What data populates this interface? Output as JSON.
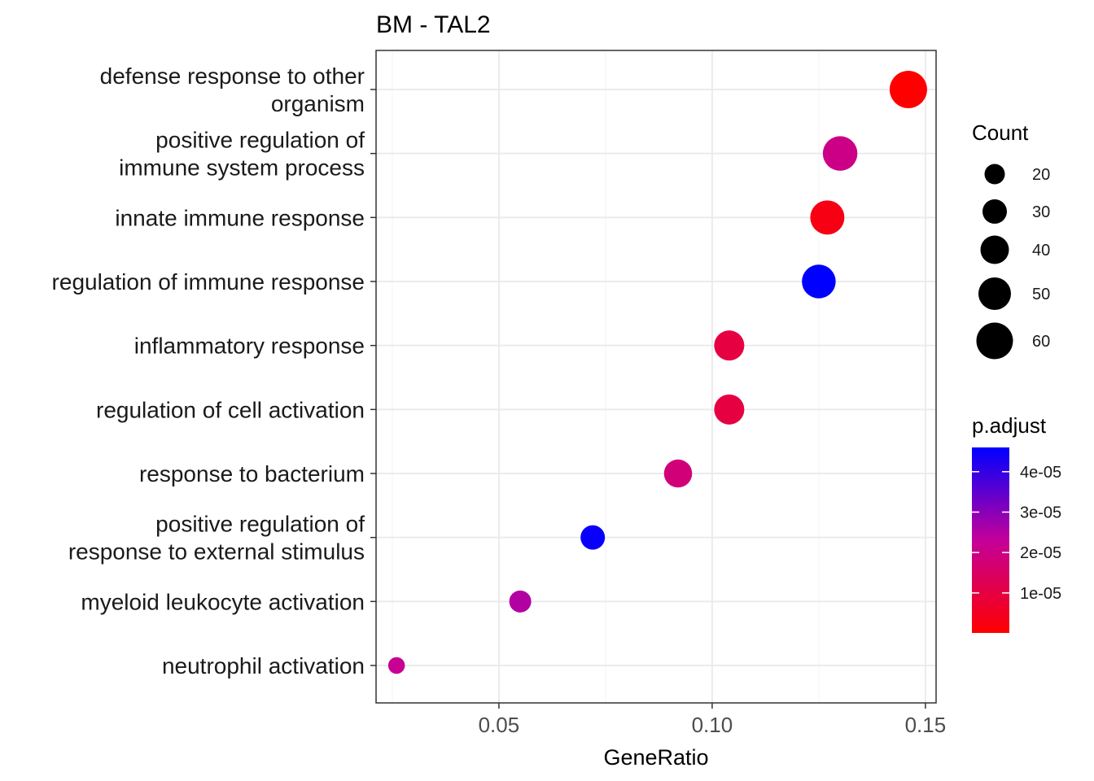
{
  "chart_data": {
    "type": "scatter",
    "title": "BM - TAL2",
    "xlabel": "GeneRatio",
    "ylabel": "",
    "xlim": [
      0.0212,
      0.1525
    ],
    "x_ticks": [
      0.05,
      0.1,
      0.15
    ],
    "x_tick_labels": [
      "0.05",
      "0.10",
      "0.15"
    ],
    "grid": true,
    "legend_position": "right",
    "categories": [
      {
        "label": [
          "defense response to other",
          "organism"
        ],
        "gene_ratio": 0.146,
        "count": 62,
        "p_adjust": 1e-07
      },
      {
        "label": [
          "positive regulation of",
          "immune system process"
        ],
        "gene_ratio": 0.13,
        "count": 55,
        "p_adjust": 2e-05
      },
      {
        "label": [
          "innate immune response"
        ],
        "gene_ratio": 0.127,
        "count": 54,
        "p_adjust": 3e-06
      },
      {
        "label": [
          "regulation of immune response"
        ],
        "gene_ratio": 0.125,
        "count": 53,
        "p_adjust": 4.6e-05
      },
      {
        "label": [
          "inflammatory response"
        ],
        "gene_ratio": 0.104,
        "count": 44,
        "p_adjust": 1e-05
      },
      {
        "label": [
          "regulation of cell activation"
        ],
        "gene_ratio": 0.104,
        "count": 44,
        "p_adjust": 1e-05
      },
      {
        "label": [
          "response to bacterium"
        ],
        "gene_ratio": 0.092,
        "count": 39,
        "p_adjust": 1.8e-05
      },
      {
        "label": [
          "positive regulation of",
          "response to external stimulus"
        ],
        "gene_ratio": 0.072,
        "count": 30,
        "p_adjust": 4.5e-05
      },
      {
        "label": [
          "myeloid leukocyte activation"
        ],
        "gene_ratio": 0.055,
        "count": 24,
        "p_adjust": 2.5e-05
      },
      {
        "label": [
          "neutrophil activation"
        ],
        "gene_ratio": 0.026,
        "count": 11,
        "p_adjust": 2.2e-05
      }
    ],
    "size_legend": {
      "title": "Count",
      "breaks": [
        20,
        30,
        40,
        50,
        60
      ],
      "labels": [
        "20",
        "30",
        "40",
        "50",
        "60"
      ]
    },
    "color_legend": {
      "title": "p.adjust",
      "range": [
        1e-07,
        4.6e-05
      ],
      "breaks": [
        4e-05,
        3e-05,
        2e-05,
        1e-05
      ],
      "labels": [
        "4e-05",
        "3e-05",
        "2e-05",
        "1e-05"
      ],
      "low_color": "#ff0000",
      "high_color": "#0000ff"
    }
  }
}
